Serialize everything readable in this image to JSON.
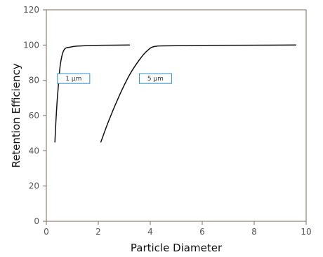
{
  "chart_data": {
    "type": "line",
    "xlabel": "Particle Diameter",
    "ylabel": "Retention Efficiency",
    "xlim": [
      0,
      10
    ],
    "ylim": [
      0,
      120
    ],
    "x_ticks": [
      "0",
      "2",
      "4",
      "6",
      "8",
      "10"
    ],
    "y_ticks": [
      "0",
      "20",
      "40",
      "60",
      "80",
      "100",
      "120"
    ],
    "grid": false,
    "legend": "none",
    "series": [
      {
        "name": "1 µm",
        "points": [
          [
            0.33,
            45
          ],
          [
            0.38,
            60
          ],
          [
            0.45,
            75
          ],
          [
            0.53,
            88
          ],
          [
            0.62,
            95
          ],
          [
            0.72,
            98
          ],
          [
            0.9,
            98.8
          ],
          [
            1.2,
            99.4
          ],
          [
            1.6,
            99.7
          ],
          [
            2.2,
            99.9
          ],
          [
            3.2,
            100
          ]
        ],
        "label_anchor": [
          1.05,
          81
        ]
      },
      {
        "name": "5 µm",
        "points": [
          [
            2.1,
            45
          ],
          [
            2.4,
            57
          ],
          [
            2.8,
            71
          ],
          [
            3.2,
            83
          ],
          [
            3.6,
            92
          ],
          [
            3.9,
            97
          ],
          [
            4.2,
            99.3
          ],
          [
            5.0,
            99.6
          ],
          [
            6.0,
            99.8
          ],
          [
            7.5,
            99.9
          ],
          [
            9.6,
            100
          ]
        ],
        "label_anchor": [
          4.2,
          81
        ]
      }
    ],
    "colors": {
      "line": "#111111",
      "axis": "#7a6a58",
      "label_box": "#2a8fc4"
    }
  }
}
